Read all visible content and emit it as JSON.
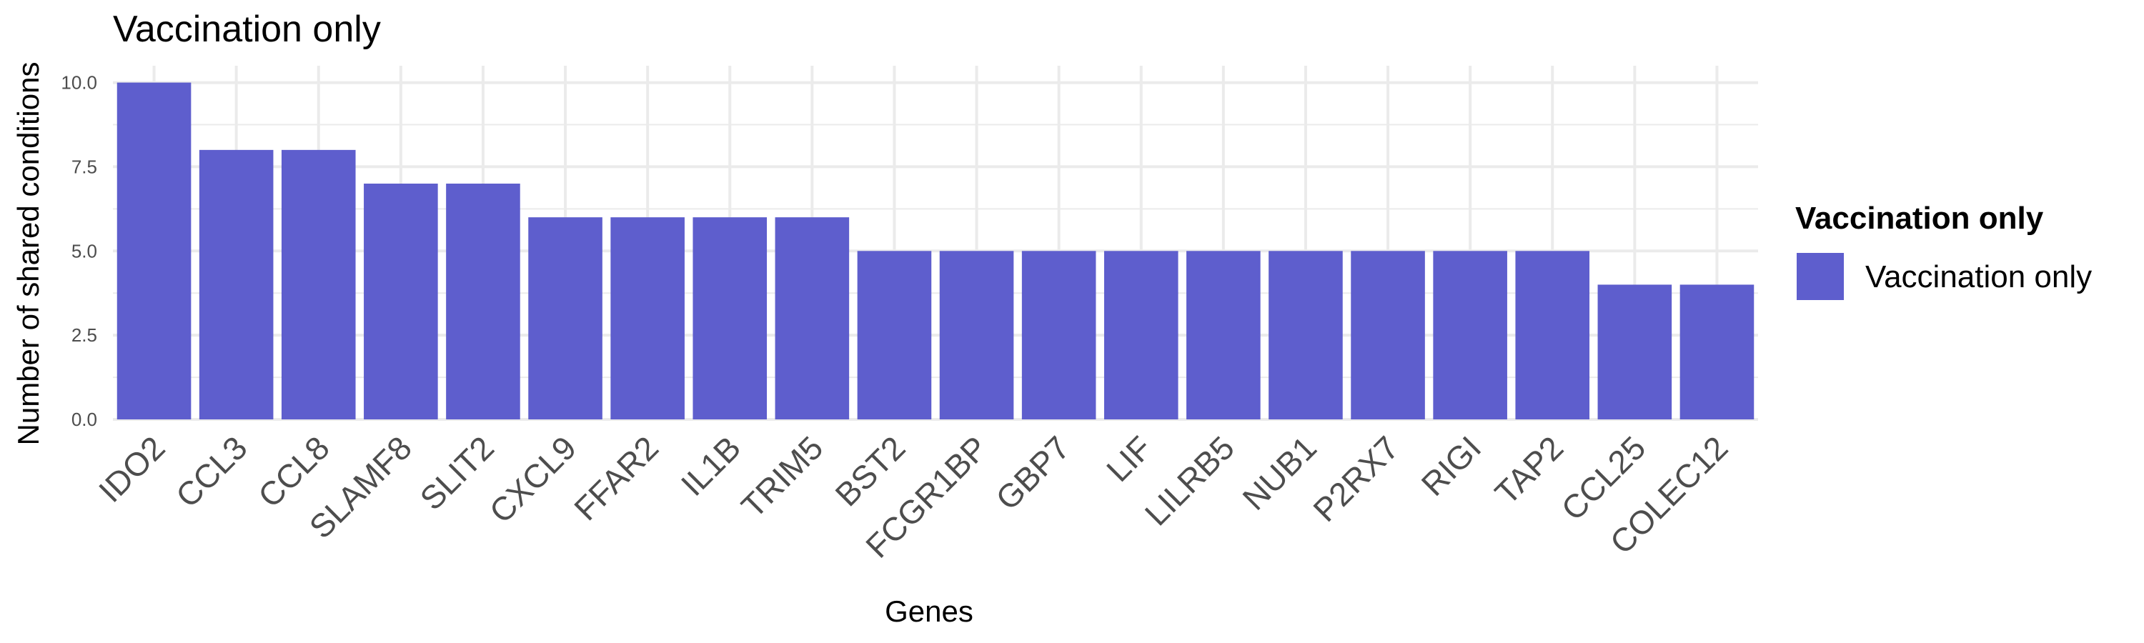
{
  "chart_data": {
    "type": "bar",
    "title": "Vaccination only",
    "xlabel": "Genes",
    "ylabel": "Number of shared conditions",
    "categories": [
      "IDO2",
      "CCL3",
      "CCL8",
      "SLAMF8",
      "SLIT2",
      "CXCL9",
      "FFAR2",
      "IL1B",
      "TRIM5",
      "BST2",
      "FCGR1BP",
      "GBP7",
      "LIF",
      "LILRB5",
      "NUB1",
      "P2RX7",
      "RIGI",
      "TAP2",
      "CCL25",
      "COLEC12"
    ],
    "series": [
      {
        "name": "Vaccination only",
        "color": "#5e5ecd",
        "values": [
          10,
          8,
          8,
          7,
          7,
          6,
          6,
          6,
          6,
          5,
          5,
          5,
          5,
          5,
          5,
          5,
          5,
          5,
          4,
          4
        ]
      }
    ],
    "ylim": [
      0,
      10.5
    ],
    "yticks": [
      0,
      2.5,
      5,
      7.5,
      10
    ],
    "ytick_labels": [
      "0.0",
      "2.5",
      "5.0",
      "7.5",
      "10.0"
    ],
    "grid": true,
    "legend": {
      "title": "Vaccination only",
      "position": "right",
      "labels": [
        "Vaccination only"
      ]
    }
  }
}
